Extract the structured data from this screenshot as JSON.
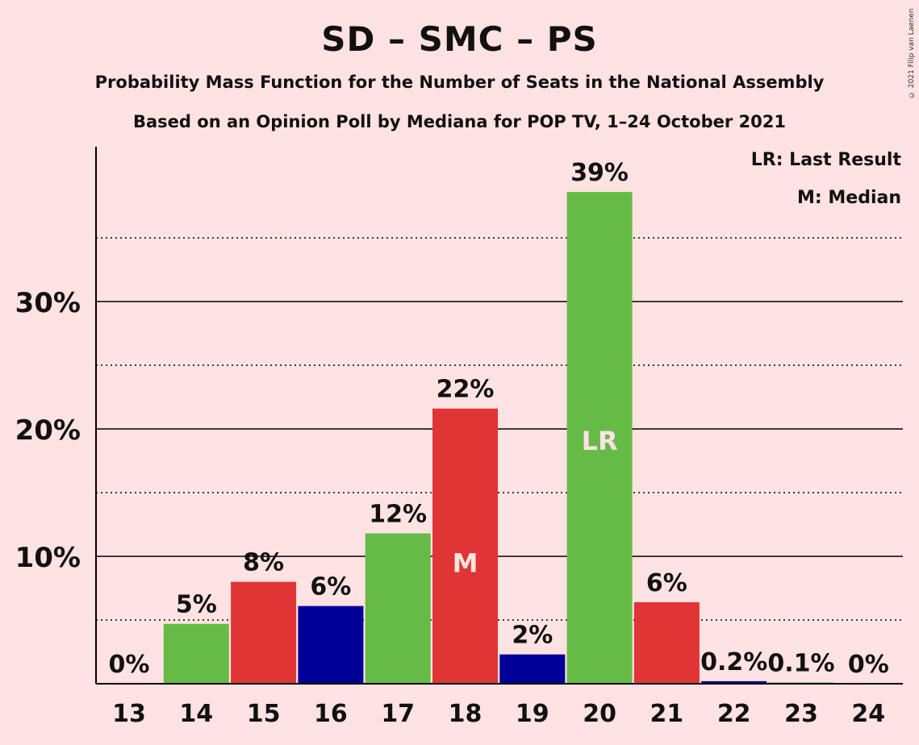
{
  "title": "SD – SMC – PS",
  "subtitle": "Probability Mass Function for the Number of Seats in the National Assembly",
  "subtitle2": "Based on an Opinion Poll by Mediana for POP TV, 1–24 October 2021",
  "copyright": "© 2021 Filip van Laenen",
  "legend": {
    "last_result": "LR: Last Result",
    "median": "M: Median"
  },
  "colors": {
    "background": "#ffe2e2",
    "green": "#66bb47",
    "red": "#e03535",
    "blue": "#000099",
    "bar_label_light": "#ffe2e2"
  },
  "chart_data": {
    "type": "bar",
    "title": "SD – SMC – PS",
    "categories": [
      "13",
      "14",
      "15",
      "16",
      "17",
      "18",
      "19",
      "20",
      "21",
      "22",
      "23",
      "24"
    ],
    "values": [
      0,
      4.7,
      8.0,
      6.1,
      11.8,
      21.6,
      2.3,
      38.6,
      6.4,
      0.2,
      0.1,
      0
    ],
    "value_labels": [
      "0%",
      "5%",
      "8%",
      "6%",
      "12%",
      "22%",
      "2%",
      "39%",
      "6%",
      "0.2%",
      "0.1%",
      "0%"
    ],
    "bar_colors": [
      "green",
      "green",
      "red",
      "blue",
      "green",
      "red",
      "blue",
      "green",
      "red",
      "blue",
      "green",
      "red"
    ],
    "markers": {
      "18": "M",
      "20": "LR"
    },
    "y_ticks": [
      10,
      20,
      30
    ],
    "y_tick_labels": [
      "10%",
      "20%",
      "30%"
    ],
    "y_minor_ticks": [
      5,
      15,
      25,
      35
    ],
    "ylim": [
      0,
      42
    ],
    "grid": true
  }
}
